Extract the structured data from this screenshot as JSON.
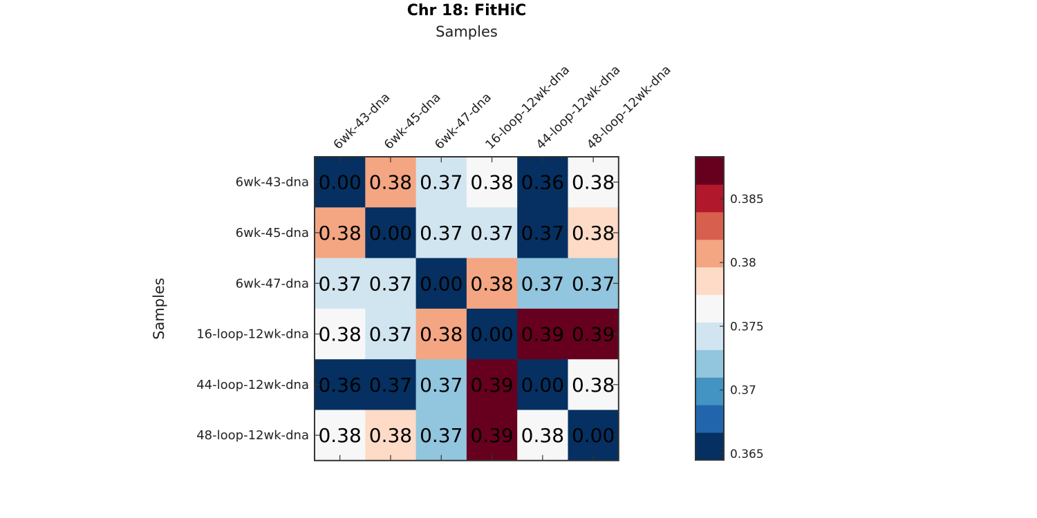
{
  "chart_data": {
    "type": "heatmap",
    "title": "Chr 18: FitHiC",
    "xlabel": "Samples",
    "ylabel": "Samples",
    "x_categories": [
      "6wk-43-dna",
      "6wk-45-dna",
      "6wk-47-dna",
      "16-loop-12wk-dna",
      "44-loop-12wk-dna",
      "48-loop-12wk-dna"
    ],
    "y_categories": [
      "6wk-43-dna",
      "6wk-45-dna",
      "6wk-47-dna",
      "16-loop-12wk-dna",
      "44-loop-12wk-dna",
      "48-loop-12wk-dna"
    ],
    "x_axis_position": "top",
    "values": [
      [
        0.0,
        0.3806,
        0.3735,
        0.3762,
        0.36,
        0.3762
      ],
      [
        0.3806,
        0.0,
        0.3735,
        0.3735,
        0.365,
        0.3775
      ],
      [
        0.3735,
        0.3735,
        0.0,
        0.3805,
        0.3721,
        0.3721
      ],
      [
        0.3762,
        0.3735,
        0.3805,
        0.0,
        0.39,
        0.39
      ],
      [
        0.36,
        0.365,
        0.3721,
        0.39,
        0.0,
        0.3762
      ],
      [
        0.3762,
        0.3775,
        0.3721,
        0.39,
        0.3762,
        0.0
      ]
    ],
    "labels": [
      [
        "0.00",
        "0.38",
        "0.37",
        "0.38",
        "0.36",
        "0.38"
      ],
      [
        "0.38",
        "0.00",
        "0.37",
        "0.37",
        "0.37",
        "0.38"
      ],
      [
        "0.37",
        "0.37",
        "0.00",
        "0.38",
        "0.37",
        "0.37"
      ],
      [
        "0.38",
        "0.37",
        "0.38",
        "0.00",
        "0.39",
        "0.39"
      ],
      [
        "0.36",
        "0.37",
        "0.37",
        "0.39",
        "0.00",
        "0.38"
      ],
      [
        "0.38",
        "0.38",
        "0.37",
        "0.39",
        "0.38",
        "0.00"
      ]
    ],
    "colorbar": {
      "range": [
        0.3645,
        0.3883
      ],
      "ticks": [
        0.365,
        0.37,
        0.375,
        0.38,
        0.385
      ],
      "tick_labels": [
        "0.365",
        "0.37",
        "0.375",
        "0.38",
        "0.385"
      ],
      "colors": [
        "#053061",
        "#2166ac",
        "#4393c3",
        "#92c5de",
        "#d1e5f0",
        "#f7f7f7",
        "#fddbc7",
        "#f4a582",
        "#d6604d",
        "#b2182b",
        "#67001f"
      ]
    }
  }
}
